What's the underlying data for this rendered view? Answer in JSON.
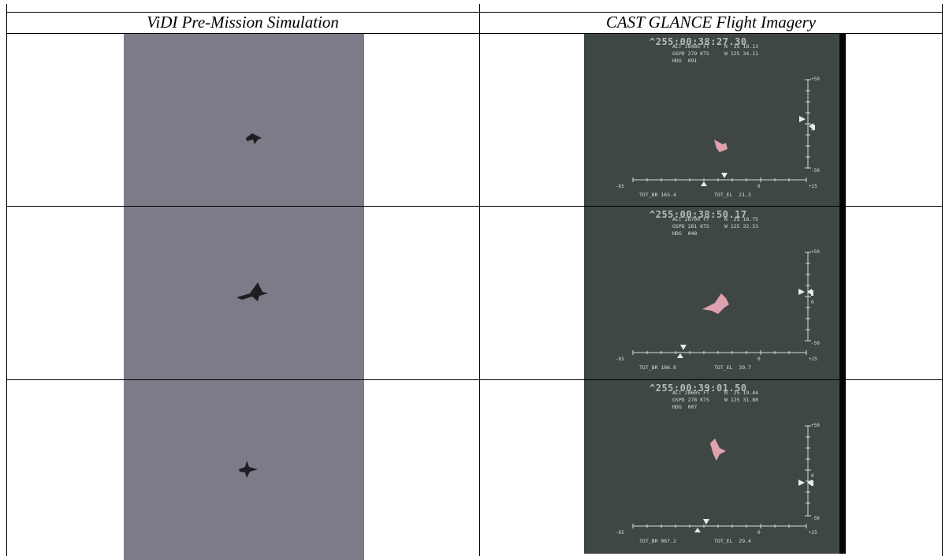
{
  "table": {
    "header_left": "ViDI Pre-Mission Simulation",
    "header_right": "CAST GLANCE Flight Imagery"
  },
  "frames": [
    {
      "timestamp": "^255:00:38:27.30",
      "alt": "ALT 28485 FT",
      "gspd": "GSPD 279 KTS",
      "hdg": "HDG  091",
      "lat": "N  25 18.13",
      "lon": "W 125 34.11",
      "tot_br": "TOT_BR 165.4",
      "tot_el": "TOT_EL  21.3",
      "scale_top": "+50",
      "scale_mid": "0",
      "scale_bot": "-50",
      "axis_left": "-65",
      "axis_mid": "0",
      "axis_right": "+25"
    },
    {
      "timestamp": "^255:00:38:50.17",
      "alt": "ALT 28700 FT",
      "gspd": "GSPD 281 KTS",
      "hdg": "HDG  048",
      "lat": "N  25 18.75",
      "lon": "W 125 32.31",
      "tot_br": "TOT_BR 106.8",
      "tot_el": "TOT_EL  39.7",
      "scale_top": "+50",
      "scale_mid": "0",
      "scale_bot": "-50",
      "axis_left": "-65",
      "axis_mid": "0",
      "axis_right": "+25"
    },
    {
      "timestamp": "^255:00:39:01.50",
      "alt": "ALT 28605 FT",
      "gspd": "GSPD 278 KTS",
      "hdg": "HDG  007",
      "lat": "N  25 19.44",
      "lon": "W 125 31.80",
      "tot_br": "TOT_BR 067.2",
      "tot_el": "TOT_EL  29.4",
      "scale_top": "+50",
      "scale_mid": "0",
      "scale_bot": "-50",
      "axis_left": "-65",
      "axis_mid": "0",
      "axis_right": "+25"
    }
  ],
  "colors": {
    "sim_background": "#7c7b88",
    "ir_background": "#3f4744",
    "aircraft_sim": "#1e1e22",
    "aircraft_ir": "#e8a6b6",
    "grid_line": "#000000"
  }
}
